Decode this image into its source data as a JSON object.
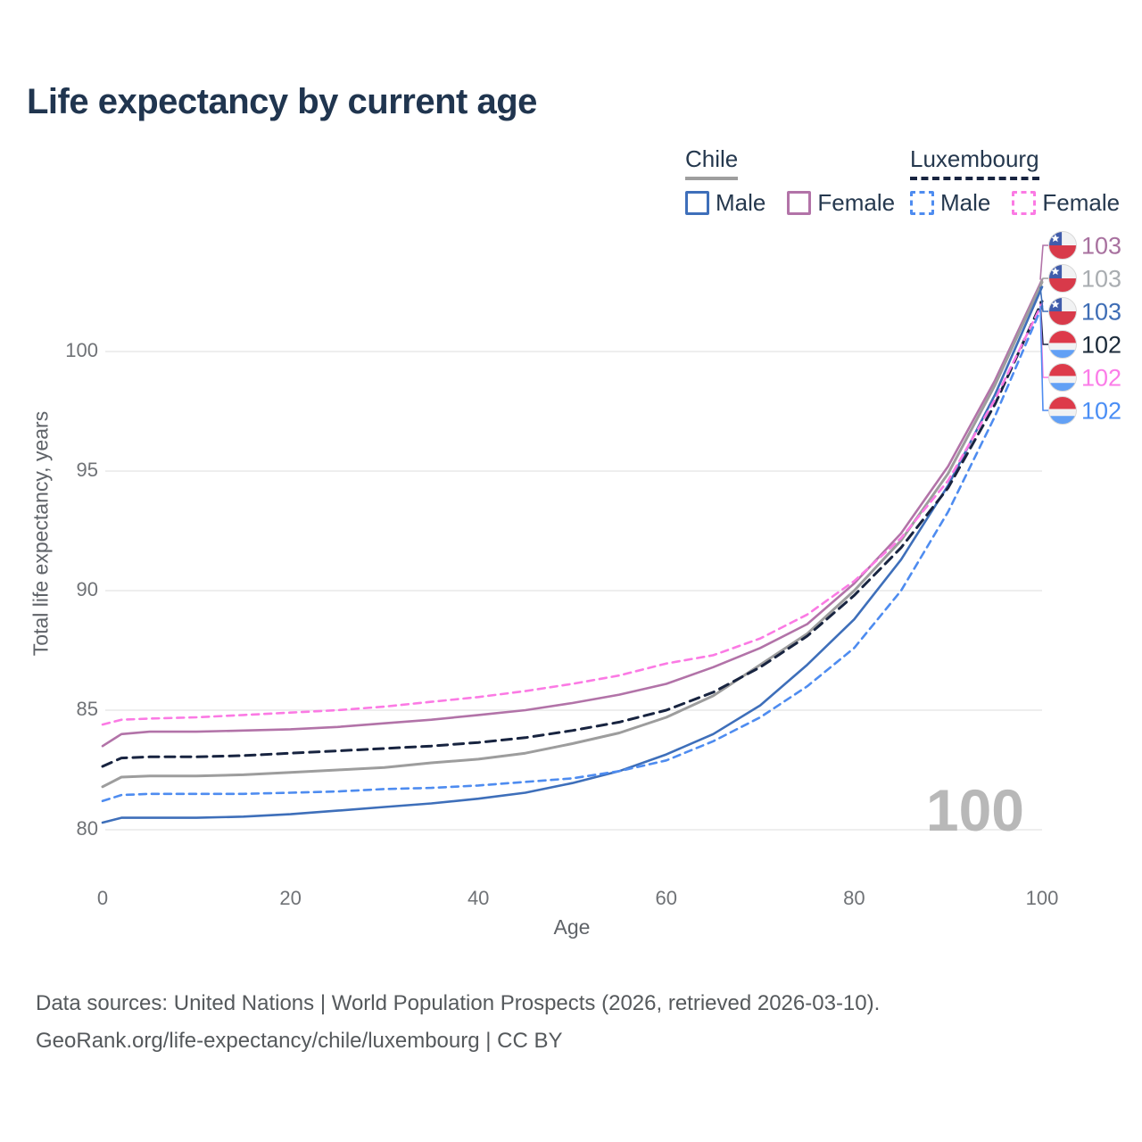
{
  "header": {
    "title": "Life expectancy by current age"
  },
  "legend": {
    "groups": [
      {
        "label": "Chile",
        "line_style": "solid",
        "underline_color": "#9e9e9e",
        "items": [
          {
            "label": "Male",
            "color": "#3e6fba",
            "dashed": false
          },
          {
            "label": "Female",
            "color": "#b273a8",
            "dashed": false
          }
        ]
      },
      {
        "label": "Luxembourg",
        "line_style": "dashed",
        "underline_color": "#182440",
        "items": [
          {
            "label": "Male",
            "color": "#4e8cf0",
            "dashed": true
          },
          {
            "label": "Female",
            "color": "#fb7ae4",
            "dashed": true
          }
        ]
      }
    ]
  },
  "chart_data": {
    "type": "line",
    "title": "Life expectancy by current age",
    "xlabel": "Age",
    "ylabel": "Total life expectancy, years",
    "xlim": [
      0,
      100
    ],
    "ylim": [
      79.5,
      104
    ],
    "x_ticks": [
      0,
      20,
      40,
      60,
      80,
      100
    ],
    "y_ticks": [
      80,
      85,
      90,
      95,
      100
    ],
    "grid": "horizontal",
    "legend_position": "top-right",
    "watermark": "100",
    "x": [
      0,
      2,
      5,
      10,
      15,
      20,
      25,
      30,
      35,
      40,
      45,
      50,
      55,
      60,
      65,
      70,
      75,
      80,
      85,
      90,
      95,
      100
    ],
    "series": [
      {
        "id": "chile-female",
        "name": "Chile Female",
        "country": "Chile",
        "sex": "Female",
        "color": "#b273a8",
        "dash": "solid",
        "width": 2.6,
        "end_label": "103",
        "label_color": "#a8719f",
        "values": [
          83.5,
          84.0,
          84.1,
          84.1,
          84.15,
          84.2,
          84.3,
          84.45,
          84.6,
          84.8,
          85.0,
          85.3,
          85.65,
          86.1,
          86.8,
          87.6,
          88.6,
          90.3,
          92.4,
          95.2,
          98.8,
          103.0
        ]
      },
      {
        "id": "chile-overall",
        "name": "Chile Both sexes",
        "country": "Chile",
        "sex": "Both",
        "color": "#9d9d9d",
        "dash": "solid",
        "width": 3.0,
        "end_label": "103",
        "label_color": "#a9adb1",
        "values": [
          81.8,
          82.2,
          82.25,
          82.25,
          82.3,
          82.4,
          82.5,
          82.6,
          82.8,
          82.95,
          83.2,
          83.6,
          84.05,
          84.7,
          85.6,
          86.9,
          88.2,
          90.0,
          92.1,
          94.9,
          98.6,
          102.9
        ]
      },
      {
        "id": "chile-male",
        "name": "Chile Male",
        "country": "Chile",
        "sex": "Male",
        "color": "#3e6fba",
        "dash": "solid",
        "width": 2.6,
        "end_label": "103",
        "label_color": "#3e6db5",
        "values": [
          80.3,
          80.5,
          80.5,
          80.5,
          80.55,
          80.65,
          80.8,
          80.95,
          81.1,
          81.3,
          81.55,
          81.95,
          82.45,
          83.15,
          84.0,
          85.2,
          86.9,
          88.8,
          91.3,
          94.4,
          98.2,
          102.7
        ]
      },
      {
        "id": "lux-overall",
        "name": "Luxembourg Both sexes",
        "country": "Luxembourg",
        "sex": "Both",
        "color": "#182440",
        "dash": "dashed",
        "width": 3.0,
        "end_label": "102",
        "label_color": "#1c2b3a",
        "values": [
          82.65,
          83.0,
          83.05,
          83.05,
          83.1,
          83.2,
          83.3,
          83.4,
          83.5,
          83.65,
          83.85,
          84.15,
          84.5,
          85.0,
          85.75,
          86.8,
          88.1,
          89.8,
          91.8,
          94.3,
          97.8,
          102.1
        ]
      },
      {
        "id": "lux-female",
        "name": "Luxembourg Female",
        "country": "Luxembourg",
        "sex": "Female",
        "color": "#fb7ae4",
        "dash": "dashed",
        "width": 2.6,
        "end_label": "102",
        "label_color": "#fb7ce8",
        "values": [
          84.4,
          84.6,
          84.65,
          84.7,
          84.8,
          84.9,
          85.0,
          85.15,
          85.35,
          85.55,
          85.8,
          86.1,
          86.45,
          86.95,
          87.3,
          88.0,
          89.0,
          90.4,
          92.2,
          94.6,
          98.0,
          102.0
        ]
      },
      {
        "id": "lux-male",
        "name": "Luxembourg Male",
        "country": "Luxembourg",
        "sex": "Male",
        "color": "#4e8cf0",
        "dash": "dashed",
        "width": 2.6,
        "end_label": "102",
        "label_color": "#4a8ef5",
        "values": [
          81.2,
          81.45,
          81.5,
          81.5,
          81.5,
          81.55,
          81.6,
          81.7,
          81.75,
          81.85,
          82.0,
          82.15,
          82.45,
          82.9,
          83.7,
          84.7,
          86.0,
          87.6,
          90.0,
          93.3,
          97.3,
          101.9
        ]
      }
    ],
    "end_labels_order": [
      "chile-female",
      "chile-overall",
      "chile-male",
      "lux-overall",
      "lux-female",
      "lux-male"
    ]
  },
  "footer": {
    "line1": "Data sources: United Nations | World Population Prospects (2026, retrieved 2026-03-10).",
    "line2": "GeoRank.org/life-expectancy/chile/luxembourg | CC BY"
  }
}
